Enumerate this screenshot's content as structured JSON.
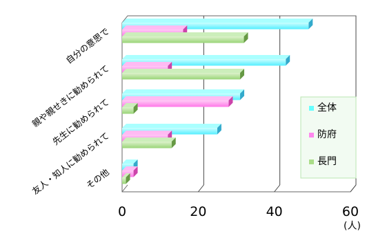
{
  "chart_data": {
    "type": "bar",
    "orientation": "horizontal",
    "categories": [
      "自分の意思で",
      "親や親せきに勧められて",
      "先生に勧められて",
      "友人・知人に勧められて",
      "その他"
    ],
    "series": [
      {
        "name": "全体",
        "values": [
          49,
          43,
          31,
          25,
          3
        ]
      },
      {
        "name": "防府",
        "values": [
          16,
          12,
          28,
          12,
          3
        ]
      },
      {
        "name": "長門",
        "values": [
          32,
          31,
          3,
          13,
          1
        ]
      }
    ],
    "xlim": [
      0,
      60
    ],
    "xticks": [
      "0",
      "20",
      "40",
      "60"
    ],
    "unit": "(人)",
    "legend_position": "right",
    "grid": true,
    "colors": {
      "全体": "#66FFFF",
      "防府": "#FF88EE",
      "長門": "#AADD88"
    }
  }
}
